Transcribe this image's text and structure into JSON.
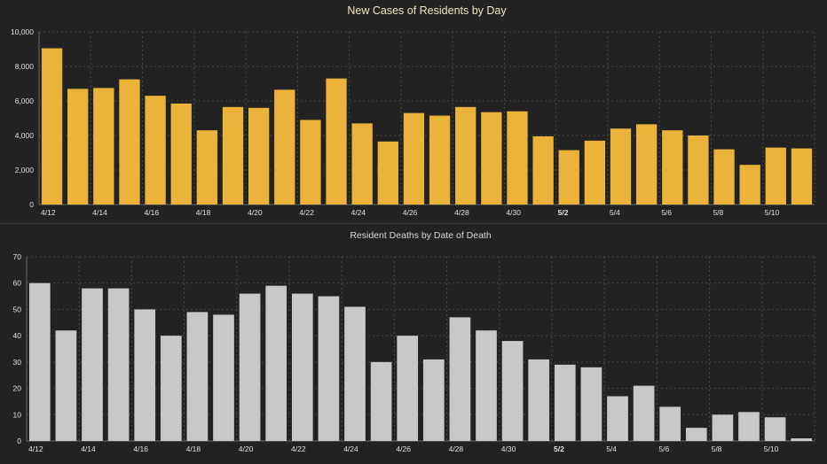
{
  "charts": [
    {
      "chart_data": {
        "type": "bar",
        "title": "New Cases of Residents by Day",
        "xlabel": "",
        "ylabel": "",
        "ylim": [
          0,
          10000
        ],
        "yticks": [
          0,
          2000,
          4000,
          6000,
          8000,
          10000
        ],
        "ytick_labels": [
          "0",
          "2,000",
          "4,000",
          "6,000",
          "8,000",
          "10,000"
        ],
        "categories": [
          "4/12",
          "4/13",
          "4/14",
          "4/15",
          "4/16",
          "4/17",
          "4/18",
          "4/19",
          "4/20",
          "4/21",
          "4/22",
          "4/23",
          "4/24",
          "4/25",
          "4/26",
          "4/27",
          "4/28",
          "4/29",
          "4/30",
          "5/1",
          "5/2",
          "5/3",
          "5/4",
          "5/5",
          "5/6",
          "5/7",
          "5/8",
          "5/9",
          "5/10",
          "5/11"
        ],
        "values": [
          9050,
          6700,
          6750,
          7250,
          6300,
          5850,
          4300,
          5650,
          5600,
          6650,
          4900,
          7300,
          4700,
          3650,
          5300,
          5150,
          5650,
          5350,
          5400,
          3950,
          3150,
          3700,
          4400,
          4650,
          4300,
          4000,
          3200,
          2300,
          3300,
          3250
        ],
        "xtick_labels": [
          "4/12",
          "4/14",
          "4/16",
          "4/18",
          "4/20",
          "4/22",
          "4/24",
          "4/26",
          "4/28",
          "4/30",
          "5/2",
          "5/4",
          "5/6",
          "5/8",
          "5/10"
        ],
        "grid": true,
        "legend": "none",
        "bar_color": "#ebb33a"
      }
    },
    {
      "chart_data": {
        "type": "bar",
        "title": "Resident Deaths by Date of Death",
        "xlabel": "",
        "ylabel": "",
        "ylim": [
          0,
          70
        ],
        "yticks": [
          0,
          10,
          20,
          30,
          40,
          50,
          60,
          70
        ],
        "ytick_labels": [
          "0",
          "10",
          "20",
          "30",
          "40",
          "50",
          "60",
          "70"
        ],
        "categories": [
          "4/12",
          "4/13",
          "4/14",
          "4/15",
          "4/16",
          "4/17",
          "4/18",
          "4/19",
          "4/20",
          "4/21",
          "4/22",
          "4/23",
          "4/24",
          "4/25",
          "4/26",
          "4/27",
          "4/28",
          "4/29",
          "4/30",
          "5/1",
          "5/2",
          "5/3",
          "5/4",
          "5/5",
          "5/6",
          "5/7",
          "5/8",
          "5/9",
          "5/10",
          "5/11"
        ],
        "values": [
          60,
          42,
          58,
          58,
          50,
          40,
          49,
          48,
          56,
          59,
          56,
          55,
          51,
          30,
          40,
          31,
          47,
          42,
          38,
          31,
          29,
          28,
          17,
          21,
          13,
          5,
          10,
          11,
          9,
          1
        ],
        "xtick_labels": [
          "4/12",
          "4/14",
          "4/16",
          "4/18",
          "4/20",
          "4/22",
          "4/24",
          "4/26",
          "4/28",
          "4/30",
          "5/2",
          "5/4",
          "5/6",
          "5/8",
          "5/10"
        ],
        "grid": true,
        "legend": "none",
        "bar_color": "#c8c8c8"
      }
    }
  ],
  "style": {
    "background": "#222222",
    "grid_color": "#4a4a4a",
    "axis_color": "#666666",
    "tick_text_color": "#e0e0e0",
    "title_color_top": "#f0e6c0",
    "title_color_bottom": "#d8d8d8"
  }
}
